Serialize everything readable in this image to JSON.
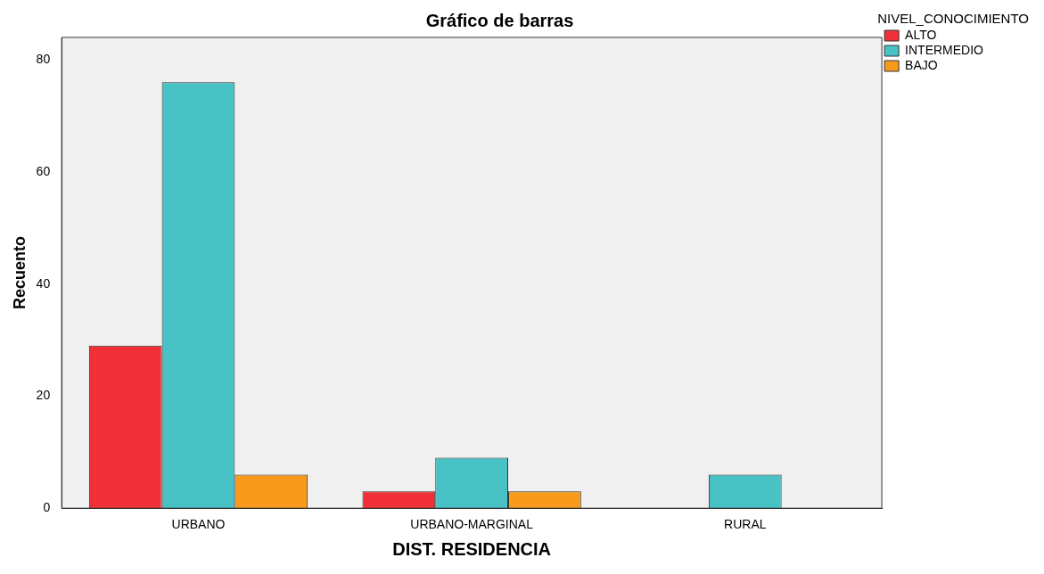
{
  "chart_data": {
    "type": "bar",
    "title": "Gráfico de barras",
    "xlabel": "DIST. RESIDENCIA",
    "ylabel": "Recuento",
    "legend_title": "NIVEL_CONOCIMIENTO",
    "categories": [
      "URBANO",
      "URBANO-MARGINAL",
      "RURAL"
    ],
    "series": [
      {
        "name": "ALTO",
        "color": "#ef3038",
        "values": [
          29,
          3,
          null
        ]
      },
      {
        "name": "INTERMEDIO",
        "color": "#48c2c5",
        "values": [
          76,
          9,
          6
        ]
      },
      {
        "name": "BAJO",
        "color": "#f89a1c",
        "values": [
          6,
          3,
          null
        ]
      }
    ],
    "ylim": [
      0,
      84
    ],
    "yticks": [
      0,
      20,
      40,
      60,
      80
    ],
    "grid": false,
    "legend": "top right"
  }
}
